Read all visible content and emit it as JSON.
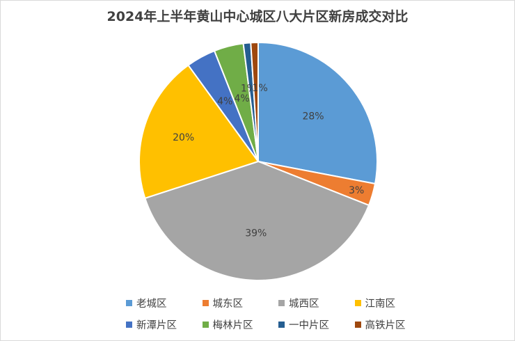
{
  "chart_data": {
    "type": "pie",
    "title": "2024年上半年黄山中心城区八大片区新房成交对比",
    "categories": [
      "老城区",
      "城东区",
      "城西区",
      "江南区",
      "新潭片区",
      "梅林片区",
      "一中片区",
      "高铁片区"
    ],
    "values": [
      28,
      3,
      39,
      20,
      4,
      4,
      1,
      1
    ],
    "labels": [
      "28%",
      "3%",
      "39%",
      "20%",
      "4%",
      "4%",
      "1%",
      "1%"
    ],
    "colors": [
      "#5b9bd5",
      "#ed7d31",
      "#a5a5a5",
      "#ffc000",
      "#4472c4",
      "#70ad47",
      "#255e91",
      "#9e480e"
    ],
    "legend_position": "bottom"
  }
}
